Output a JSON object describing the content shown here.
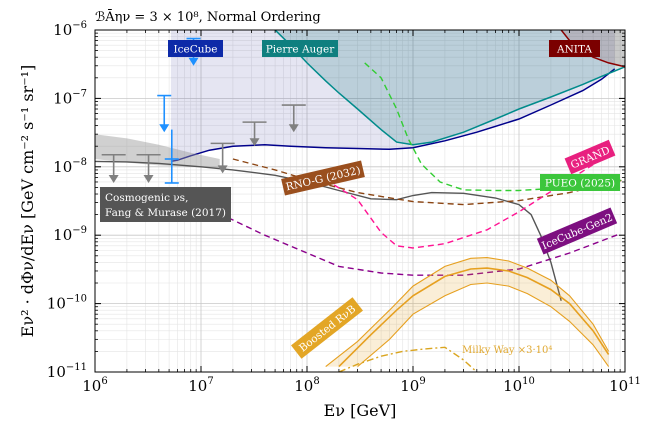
{
  "chart_data": {
    "type": "line",
    "header": "ℬᾹην = 3 × 10⁸, Normal Ordering",
    "xlabel": "Eν [GeV]",
    "ylabel": "Eν² · dΦν/dEν [GeV cm⁻² s⁻¹ sr⁻¹]",
    "x_scale": "log",
    "y_scale": "log",
    "xlim": [
      1000000.0,
      100000000000.0
    ],
    "ylim": [
      1e-11,
      1e-06
    ],
    "grid": true,
    "x_ticks": [
      {
        "value": 1000000.0,
        "base": "10",
        "exp": "6"
      },
      {
        "value": 10000000.0,
        "base": "10",
        "exp": "7"
      },
      {
        "value": 100000000.0,
        "base": "10",
        "exp": "8"
      },
      {
        "value": 1000000000.0,
        "base": "10",
        "exp": "9"
      },
      {
        "value": 10000000000.0,
        "base": "10",
        "exp": "10"
      },
      {
        "value": 100000000000.0,
        "base": "10",
        "exp": "11"
      }
    ],
    "y_ticks": [
      {
        "value": 1e-11,
        "base": "10",
        "exp": "−11"
      },
      {
        "value": 1e-10,
        "base": "10",
        "exp": "−10"
      },
      {
        "value": 1e-09,
        "base": "10",
        "exp": "−9"
      },
      {
        "value": 1e-08,
        "base": "10",
        "exp": "−8"
      },
      {
        "value": 1e-07,
        "base": "10",
        "exp": "−7"
      },
      {
        "value": 1e-06,
        "base": "10",
        "exp": "−6"
      }
    ],
    "regions": [
      {
        "name": "IceCube",
        "color": "#00008b",
        "fill": "rgba(40,40,150,0.12)",
        "boundary": [
          [
            5200000.0,
            1.2e-08
          ],
          [
            6000000.0,
            1.25e-08
          ],
          [
            8000000.0,
            1.45e-08
          ],
          [
            12000000.0,
            1.75e-08
          ],
          [
            20000000.0,
            2e-08
          ],
          [
            40000000.0,
            2.1e-08
          ],
          [
            70000000.0,
            2e-08
          ],
          [
            150000000.0,
            1.9e-08
          ],
          [
            300000000.0,
            1.85e-08
          ],
          [
            600000000.0,
            1.8e-08
          ],
          [
            1000000000.0,
            1.9e-08
          ],
          [
            2000000000.0,
            2.4e-08
          ],
          [
            4000000000.0,
            3.2e-08
          ],
          [
            10000000000.0,
            5e-08
          ],
          [
            20000000000.0,
            8e-08
          ],
          [
            40000000000.0,
            1.3e-07
          ],
          [
            60000000000.0,
            1.9e-07
          ],
          [
            80000000000.0,
            2.7e-07
          ]
        ]
      },
      {
        "name": "Pierre Auger",
        "color": "#008b8b",
        "fill": "rgba(0,110,110,0.18)",
        "boundary": [
          [
            50000000.0,
            1e-06
          ],
          [
            70000000.0,
            6e-07
          ],
          [
            100000000.0,
            3.3e-07
          ],
          [
            150000000.0,
            1.8e-07
          ],
          [
            200000000.0,
            1.2e-07
          ],
          [
            300000000.0,
            7e-08
          ],
          [
            500000000.0,
            3.5e-08
          ],
          [
            700000000.0,
            2.3e-08
          ],
          [
            1000000000.0,
            2.1e-08
          ],
          [
            1500000000.0,
            2.3e-08
          ],
          [
            3000000000.0,
            3.2e-08
          ],
          [
            6000000000.0,
            5e-08
          ],
          [
            10000000000.0,
            7e-08
          ],
          [
            20000000000.0,
            1.05e-07
          ],
          [
            40000000000.0,
            1.6e-07
          ],
          [
            60000000000.0,
            2.1e-07
          ],
          [
            100000000000.0,
            2.9e-07
          ]
        ]
      },
      {
        "name": "ANITA",
        "color": "#8b0000",
        "fill": "rgba(139,0,0,0.12)",
        "boundary": [
          [
            25000000000.0,
            1e-06
          ],
          [
            30000000000.0,
            7e-07
          ],
          [
            40000000000.0,
            5e-07
          ],
          [
            50000000000.0,
            4e-07
          ],
          [
            70000000000.0,
            3.3e-07
          ],
          [
            100000000000.0,
            2.9e-07
          ]
        ]
      }
    ],
    "cosmogenic_band": {
      "name": "Cosmogenic νs, Fang & Murase (2017)",
      "color": "#9a9a9a",
      "upper": [
        [
          1000000.0,
          3e-08
        ],
        [
          2000000.0,
          2.6e-08
        ],
        [
          4000000.0,
          2.1e-08
        ],
        [
          8000000.0,
          1.6e-08
        ],
        [
          15000000.0,
          1.3e-08
        ]
      ],
      "lower": [
        [
          1000000.0,
          1.3e-08
        ],
        [
          2000000.0,
          1.15e-08
        ],
        [
          4000000.0,
          1.05e-08
        ],
        [
          8000000.0,
          1e-08
        ],
        [
          15000000.0,
          9.5e-09
        ]
      ],
      "line": [
        [
          1000000.0,
          1.2e-08
        ],
        [
          2000000.0,
          1.18e-08
        ],
        [
          4000000.0,
          1.12e-08
        ],
        [
          10000000.0,
          1e-08
        ],
        [
          20000000.0,
          9e-09
        ],
        [
          50000000.0,
          7.5e-09
        ],
        [
          100000000.0,
          6e-09
        ],
        [
          200000000.0,
          4.5e-09
        ],
        [
          400000000.0,
          3.4e-09
        ],
        [
          700000000.0,
          3.3e-09
        ],
        [
          1000000000.0,
          3.8e-09
        ],
        [
          1500000000.0,
          4.2e-09
        ],
        [
          3000000000.0,
          4.1e-09
        ],
        [
          6000000000.0,
          3.5e-09
        ],
        [
          10000000000.0,
          2.8e-09
        ],
        [
          13000000000.0,
          2e-09
        ],
        [
          16000000000.0,
          1e-09
        ],
        [
          20000000000.0,
          4e-10
        ],
        [
          25000000000.0,
          1.1e-10
        ]
      ]
    },
    "future_curves": [
      {
        "name": "RNO-G (2032)",
        "color": "#8b4513",
        "dash": "6,4",
        "points": [
          [
            20000000.0,
            1.3e-08
          ],
          [
            50000000.0,
            9e-09
          ],
          [
            100000000.0,
            6.5e-09
          ],
          [
            300000000.0,
            4.2e-09
          ],
          [
            1000000000.0,
            3.1e-09
          ],
          [
            3000000000.0,
            2.8e-09
          ],
          [
            10000000000.0,
            3.2e-09
          ],
          [
            30000000000.0,
            4.2e-09
          ],
          [
            100000000000.0,
            6.5e-09
          ]
        ]
      },
      {
        "name": "GRAND",
        "color": "#ff1493",
        "dash": "6,4",
        "points": [
          [
            150000000.0,
            6.5e-09
          ],
          [
            300000000.0,
            3.3e-09
          ],
          [
            500000000.0,
            1.1e-09
          ],
          [
            700000000.0,
            7e-10
          ],
          [
            1000000000.0,
            6.5e-10
          ],
          [
            2000000000.0,
            7.5e-10
          ],
          [
            5000000000.0,
            1.2e-09
          ],
          [
            10000000000.0,
            2.2e-09
          ],
          [
            30000000000.0,
            6.5e-09
          ],
          [
            70000000000.0,
            1.5e-08
          ]
        ]
      },
      {
        "name": "PUEO (2025)",
        "color": "#32cd32",
        "dash": "6,4",
        "points": [
          [
            350000000.0,
            3.3e-07
          ],
          [
            500000000.0,
            2e-07
          ],
          [
            700000000.0,
            7e-08
          ],
          [
            900000000.0,
            2.6e-08
          ],
          [
            1200000000.0,
            1.1e-08
          ],
          [
            1800000000.0,
            6e-09
          ],
          [
            3000000000.0,
            4.6e-09
          ],
          [
            6000000000.0,
            4.5e-09
          ],
          [
            10000000000.0,
            4.5e-09
          ],
          [
            30000000000.0,
            5e-09
          ],
          [
            100000000000.0,
            6.5e-09
          ]
        ]
      },
      {
        "name": "IceCube-Gen2",
        "color": "#8b008b",
        "dash": "6,4",
        "points": [
          [
            18000000.0,
            1.8e-09
          ],
          [
            40000000.0,
            1e-09
          ],
          [
            100000000.0,
            5.5e-10
          ],
          [
            200000000.0,
            3.5e-10
          ],
          [
            500000000.0,
            2.8e-10
          ],
          [
            1000000000.0,
            2.6e-10
          ],
          [
            3000000000.0,
            2.6e-10
          ],
          [
            10000000000.0,
            3.2e-10
          ],
          [
            30000000000.0,
            5.5e-10
          ],
          [
            90000000000.0,
            1.05e-09
          ]
        ]
      }
    ],
    "boosted_rxb": {
      "name": "Boosted RνB",
      "color": "#e6a020",
      "upper": [
        [
          150000000.0,
          1.2e-11
        ],
        [
          300000000.0,
          2.8e-11
        ],
        [
          600000000.0,
          8e-11
        ],
        [
          1000000000.0,
          1.8e-10
        ],
        [
          2000000000.0,
          3.5e-10
        ],
        [
          3500000000.0,
          4.6e-10
        ],
        [
          5000000000.0,
          4.7e-10
        ],
        [
          8000000000.0,
          4.2e-10
        ],
        [
          12000000000.0,
          3.3e-10
        ],
        [
          20000000000.0,
          2.2e-10
        ],
        [
          30000000000.0,
          1.3e-10
        ],
        [
          50000000000.0,
          5e-11
        ],
        [
          70000000000.0,
          2e-11
        ]
      ],
      "lower": [
        [
          300000000.0,
          1.2e-11
        ],
        [
          600000000.0,
          3e-11
        ],
        [
          1000000000.0,
          7e-11
        ],
        [
          2000000000.0,
          1.3e-10
        ],
        [
          3500000000.0,
          1.9e-10
        ],
        [
          5000000000.0,
          2e-10
        ],
        [
          8000000000.0,
          1.8e-10
        ],
        [
          12000000000.0,
          1.4e-10
        ],
        [
          20000000000.0,
          9e-11
        ],
        [
          30000000000.0,
          5.5e-11
        ],
        [
          50000000000.0,
          2.5e-11
        ],
        [
          70000000000.0,
          1.2e-11
        ]
      ],
      "central": [
        [
          200000000.0,
          1.2e-11
        ],
        [
          400000000.0,
          3.5e-11
        ],
        [
          700000000.0,
          8e-11
        ],
        [
          1000000000.0,
          1.3e-10
        ],
        [
          2000000000.0,
          2.5e-10
        ],
        [
          3500000000.0,
          3.2e-10
        ],
        [
          5000000000.0,
          3.3e-10
        ],
        [
          8000000000.0,
          3e-10
        ],
        [
          12000000000.0,
          2.4e-10
        ],
        [
          20000000000.0,
          1.6e-10
        ],
        [
          30000000000.0,
          1e-10
        ],
        [
          50000000000.0,
          4e-11
        ],
        [
          70000000000.0,
          1.8e-11
        ]
      ]
    },
    "milky_way": {
      "name": "Milky Way ×3·10⁴",
      "color": "#daa520",
      "points": [
        [
          200000000.0,
          1e-11
        ],
        [
          300000000.0,
          1.3e-11
        ],
        [
          500000000.0,
          1.7e-11
        ],
        [
          800000000.0,
          2e-11
        ],
        [
          1200000000.0,
          2.15e-11
        ],
        [
          1700000000.0,
          2.25e-11
        ],
        [
          2000000000.0,
          2.3e-11
        ],
        [
          3000000000.0,
          1.5e-11
        ],
        [
          4000000000.0,
          1e-11
        ]
      ]
    },
    "icecube_limits": {
      "color": "#1e90ff",
      "items": [
        {
          "x": 4500000.0,
          "y": 1.1e-07,
          "arrow_to": 3.2e-08
        },
        {
          "x": 5300000.0,
          "y": 1.3e-08,
          "arrow_to": 5.8e-09,
          "line_from": 3.5e-08
        },
        {
          "x": 8500000.0,
          "y": 7.5e-07,
          "arrow_to": 3e-07
        }
      ]
    },
    "upper_limits": {
      "color": "#808080",
      "items": [
        {
          "x": 1500000.0,
          "y": 1.5e-08,
          "arrow_to": 5.8e-09
        },
        {
          "x": 3200000.0,
          "y": 1.5e-08,
          "arrow_to": 5.8e-09
        },
        {
          "x": 16000000.0,
          "y": 2.2e-08,
          "arrow_to": 8e-09
        },
        {
          "x": 32000000.0,
          "y": 4.5e-08,
          "arrow_to": 2e-08
        },
        {
          "x": 75000000.0,
          "y": 8e-08,
          "arrow_to": 3.2e-08
        }
      ]
    },
    "labels": {
      "icecube": "IceCube",
      "auger": "Pierre Auger",
      "anita": "ANITA",
      "grand": "GRAND",
      "rnog": "RNO-G (2032)",
      "pueo": "PUEO (2025)",
      "gen2": "IceCube-Gen2",
      "cosmo_line1": "Cosmogenic νs,",
      "cosmo_line2": "Fang & Murase (2017)",
      "boosted": "Boosted RνB",
      "milky": "Milky Way ×3·10⁴"
    }
  }
}
